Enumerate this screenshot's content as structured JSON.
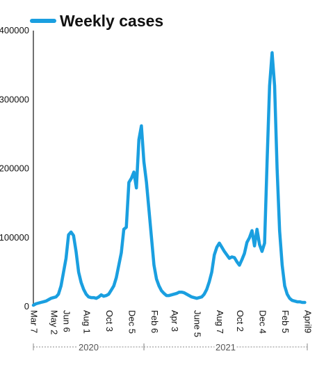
{
  "chart_data": {
    "type": "line",
    "legend": {
      "label": "Weekly cases",
      "position": "top"
    },
    "color": "#1a9fe0",
    "axis_color": "#111111",
    "year_line_color": "#888888",
    "ylim": [
      0,
      400000
    ],
    "yticks": [
      {
        "value": 0,
        "label": "0"
      },
      {
        "value": 100000,
        "label": "100000"
      },
      {
        "value": 200000,
        "label": "200000"
      },
      {
        "value": 300000,
        "label": "300000"
      },
      {
        "value": 400000,
        "label": "400000"
      }
    ],
    "xticks": [
      {
        "t": 0,
        "label": "Mar 7"
      },
      {
        "t": 8,
        "label": "May 2"
      },
      {
        "t": 13,
        "label": "Jun 6"
      },
      {
        "t": 21,
        "label": "Aug 1"
      },
      {
        "t": 30,
        "label": "Oct 3"
      },
      {
        "t": 39,
        "label": "Dec 5"
      },
      {
        "t": 48,
        "label": "Feb 6"
      },
      {
        "t": 56,
        "label": "Apr 3"
      },
      {
        "t": 65,
        "label": "June 5"
      },
      {
        "t": 74,
        "label": "Aug 7"
      },
      {
        "t": 82,
        "label": "Oct 2"
      },
      {
        "t": 91,
        "label": "Dec 4"
      },
      {
        "t": 100,
        "label": "Feb 5"
      },
      {
        "t": 109,
        "label": "April9"
      }
    ],
    "year_labels": [
      {
        "label": "2020",
        "start": 0,
        "end": 44
      },
      {
        "label": "2021",
        "start": 44,
        "end": 109
      }
    ],
    "series": [
      {
        "values": [
          [
            0,
            2000
          ],
          [
            1,
            4000
          ],
          [
            2,
            5000
          ],
          [
            3,
            6000
          ],
          [
            4,
            7000
          ],
          [
            5,
            8000
          ],
          [
            6,
            10000
          ],
          [
            7,
            12000
          ],
          [
            8,
            13000
          ],
          [
            9,
            14000
          ],
          [
            10,
            18000
          ],
          [
            11,
            30000
          ],
          [
            12,
            50000
          ],
          [
            13,
            70000
          ],
          [
            14,
            104000
          ],
          [
            15,
            108000
          ],
          [
            16,
            103000
          ],
          [
            17,
            80000
          ],
          [
            18,
            50000
          ],
          [
            19,
            35000
          ],
          [
            20,
            25000
          ],
          [
            21,
            18000
          ],
          [
            22,
            14000
          ],
          [
            23,
            13000
          ],
          [
            24,
            13000
          ],
          [
            25,
            12000
          ],
          [
            26,
            14000
          ],
          [
            27,
            17000
          ],
          [
            28,
            15000
          ],
          [
            29,
            16000
          ],
          [
            30,
            18000
          ],
          [
            31,
            24000
          ],
          [
            32,
            30000
          ],
          [
            33,
            42000
          ],
          [
            34,
            60000
          ],
          [
            35,
            78000
          ],
          [
            36,
            112000
          ],
          [
            37,
            115000
          ],
          [
            38,
            180000
          ],
          [
            39,
            186000
          ],
          [
            40,
            195000
          ],
          [
            41,
            172000
          ],
          [
            42,
            242000
          ],
          [
            43,
            262000
          ],
          [
            44,
            210000
          ],
          [
            45,
            180000
          ],
          [
            46,
            140000
          ],
          [
            47,
            100000
          ],
          [
            48,
            60000
          ],
          [
            49,
            40000
          ],
          [
            50,
            30000
          ],
          [
            51,
            23000
          ],
          [
            52,
            19000
          ],
          [
            53,
            16000
          ],
          [
            54,
            16000
          ],
          [
            55,
            17000
          ],
          [
            56,
            18000
          ],
          [
            57,
            19000
          ],
          [
            58,
            21000
          ],
          [
            59,
            21000
          ],
          [
            60,
            20000
          ],
          [
            61,
            18000
          ],
          [
            62,
            16000
          ],
          [
            63,
            14000
          ],
          [
            64,
            13000
          ],
          [
            65,
            12000
          ],
          [
            66,
            13000
          ],
          [
            67,
            14000
          ],
          [
            68,
            18000
          ],
          [
            69,
            25000
          ],
          [
            70,
            36000
          ],
          [
            71,
            50000
          ],
          [
            72,
            75000
          ],
          [
            73,
            86000
          ],
          [
            74,
            92000
          ],
          [
            75,
            86000
          ],
          [
            76,
            80000
          ],
          [
            77,
            75000
          ],
          [
            78,
            70000
          ],
          [
            79,
            72000
          ],
          [
            80,
            71000
          ],
          [
            81,
            65000
          ],
          [
            82,
            60000
          ],
          [
            83,
            68000
          ],
          [
            84,
            77000
          ],
          [
            85,
            93000
          ],
          [
            86,
            100000
          ],
          [
            87,
            110000
          ],
          [
            88,
            88000
          ],
          [
            89,
            112000
          ],
          [
            90,
            90000
          ],
          [
            91,
            80000
          ],
          [
            92,
            92000
          ],
          [
            93,
            210000
          ],
          [
            94,
            320000
          ],
          [
            95,
            368000
          ],
          [
            96,
            320000
          ],
          [
            97,
            200000
          ],
          [
            98,
            110000
          ],
          [
            99,
            60000
          ],
          [
            100,
            30000
          ],
          [
            101,
            18000
          ],
          [
            102,
            12000
          ],
          [
            103,
            9000
          ],
          [
            104,
            8000
          ],
          [
            105,
            7000
          ],
          [
            106,
            7000
          ],
          [
            107,
            6000
          ],
          [
            108,
            6000
          ]
        ]
      }
    ]
  }
}
